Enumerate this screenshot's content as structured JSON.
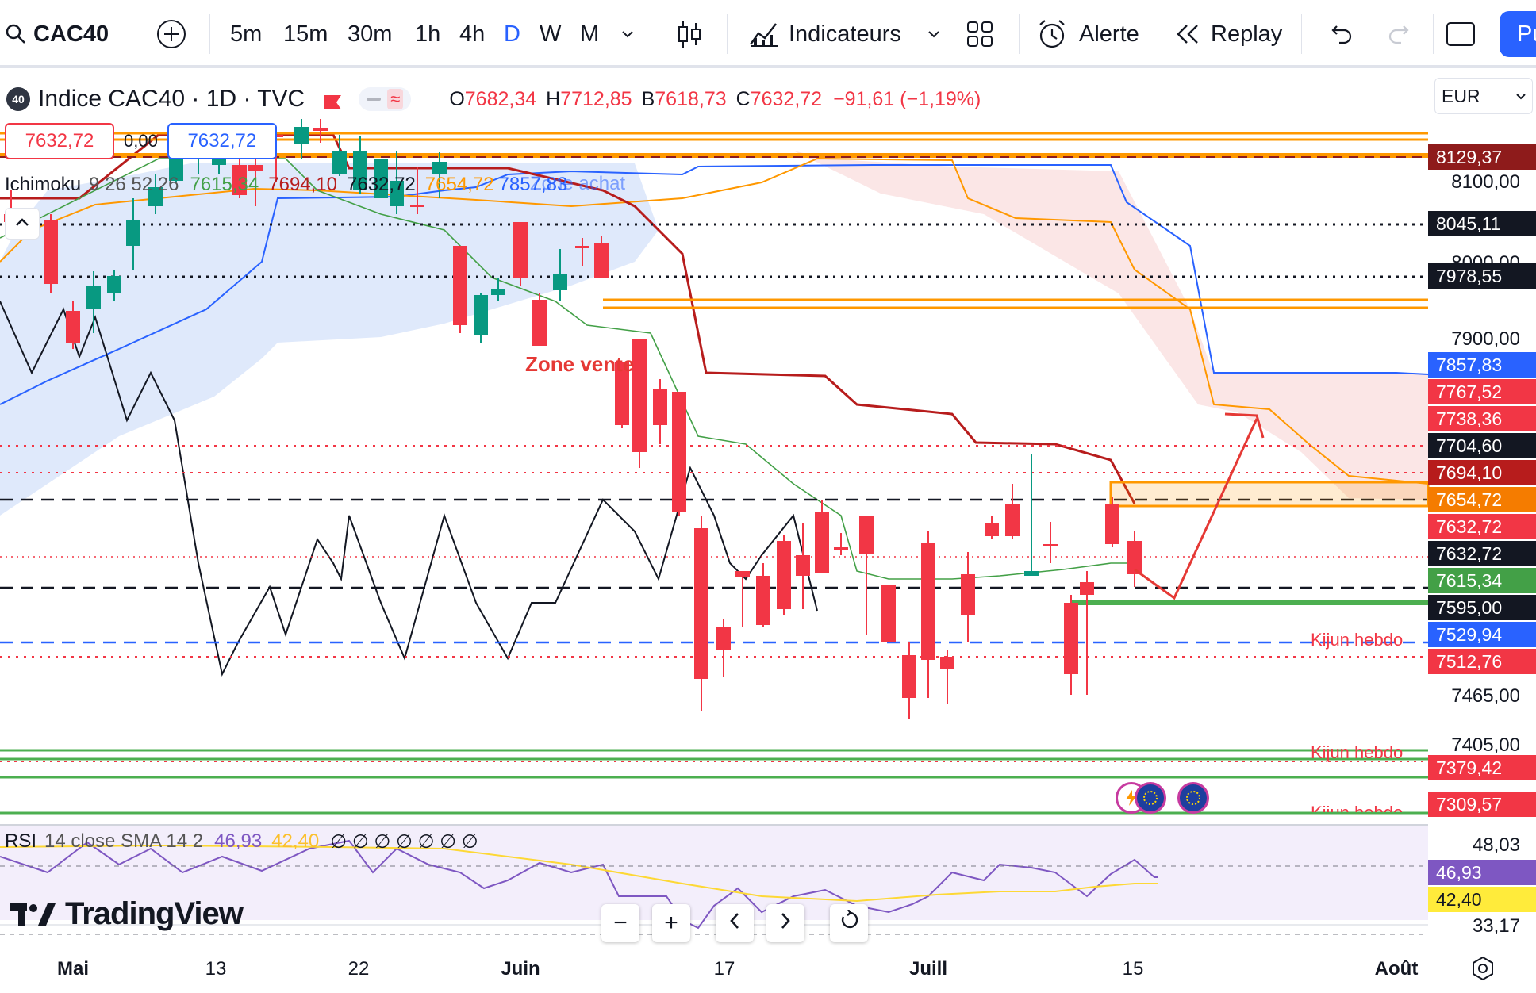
{
  "toolbar": {
    "symbol": "CAC40",
    "timeframes": [
      "5m",
      "15m",
      "30m",
      "1h",
      "4h",
      "D",
      "W",
      "M"
    ],
    "active_timeframe": "D",
    "indicators_label": "Indicateurs",
    "alert_label": "Alerte",
    "replay_label": "Replay",
    "publish_label": "Pu"
  },
  "legend": {
    "badge": "40",
    "symbol_title": "Indice CAC40 · 1D · TVC",
    "open_label": "O",
    "open": "7682,34",
    "high_label": "H",
    "high": "7712,85",
    "low_label": "B",
    "low": "7618,73",
    "close_label": "C",
    "close": "7632,72",
    "change": "−91,61 (−1,19%)",
    "sell_price": "7632,72",
    "spread": "0,00",
    "buy_price": "7632,72"
  },
  "ichimoku": {
    "name": "Ichimoku",
    "params": "9 26 52 26",
    "v1": "7615,34",
    "v2": "7694,10",
    "v3": "7632,72",
    "v4": "7654,72",
    "v5": "7857,83"
  },
  "rsi": {
    "name": "RSI",
    "params": "14 close SMA 14 2",
    "v1": "46,93",
    "v2": "42,40",
    "empties": "∅ ∅ ∅ ∅ ∅ ∅ ∅"
  },
  "currency": "EUR",
  "price_axis": [
    "8100,00",
    "8000,00",
    "7900,00",
    "7465,00",
    "7405,00"
  ],
  "price_tags": [
    {
      "label": "8129,37",
      "color": "#8e1b1b"
    },
    {
      "label": "8045,11",
      "color": "#131722"
    },
    {
      "label": "7978,55",
      "color": "#131722"
    },
    {
      "label": "7857,83",
      "color": "#2962ff"
    },
    {
      "label": "7767,52",
      "color": "#f23645"
    },
    {
      "label": "7738,36",
      "color": "#f23645"
    },
    {
      "label": "7704,60",
      "color": "#131722"
    },
    {
      "label": "7694,10",
      "color": "#b71c1c"
    },
    {
      "label": "7654,72",
      "color": "#f57c00"
    },
    {
      "label": "7632,72",
      "color": "#f23645"
    },
    {
      "label": "7632,72",
      "color": "#131722"
    },
    {
      "label": "7615,34",
      "color": "#43a047"
    },
    {
      "label": "7595,00",
      "color": "#131722"
    },
    {
      "label": "7529,94",
      "color": "#2962ff"
    },
    {
      "label": "7512,76",
      "color": "#f23645"
    },
    {
      "label": "7379,42",
      "color": "#f23645"
    },
    {
      "label": "7309,57",
      "color": "#f23645"
    }
  ],
  "rsi_axis": [
    "48,03",
    "33,17"
  ],
  "rsi_tags": [
    {
      "label": "46,93",
      "color": "#7e57c2"
    },
    {
      "label": "42,40",
      "color": "#ffeb3b"
    }
  ],
  "dates": [
    "Mai",
    "13",
    "22",
    "Juin",
    "17",
    "Juill",
    "15",
    "Août"
  ],
  "annotations": {
    "zone_vente": "Zone vente",
    "kijun": "Kijun hebdo",
    "overlap": "Zone achat"
  },
  "branding": "TradingView",
  "colors": {
    "up": "#089981",
    "down": "#f23645",
    "accent": "#2962ff",
    "orange": "#ff9800",
    "green_line": "#4caf50"
  }
}
